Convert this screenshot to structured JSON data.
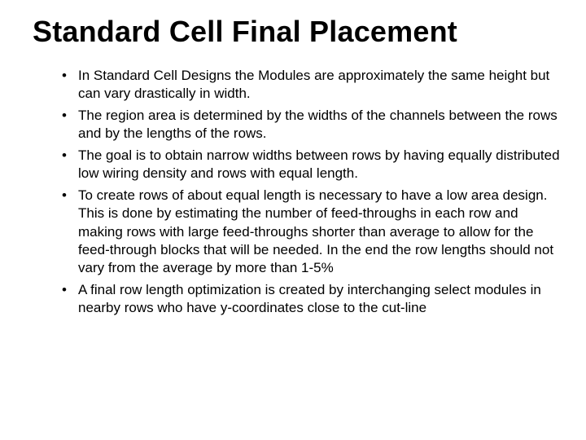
{
  "title": "Standard Cell Final Placement",
  "bullets": [
    "In Standard Cell Designs the Modules are approximately the same height but can vary drastically in width.",
    "The region area is determined by the widths of the channels between the rows and by the lengths of the rows.",
    "The goal is to obtain narrow widths between rows by having equally distributed low wiring density and rows with equal length.",
    "To create rows of about equal length is necessary to have a low area design.  This is done by estimating the number of feed-throughs in each row and making rows with large feed-throughs shorter than average to allow for the feed-through blocks that will be needed.  In the end the row lengths should not vary from the average by more than 1-5%",
    "A final row length optimization is created by interchanging select modules in nearby rows who have y-coordinates close to the cut-line"
  ],
  "style": {
    "background_color": "#ffffff",
    "text_color": "#000000",
    "title_fontsize": 36,
    "title_fontweight": "bold",
    "body_fontsize": 17,
    "font_family": "Arial"
  }
}
